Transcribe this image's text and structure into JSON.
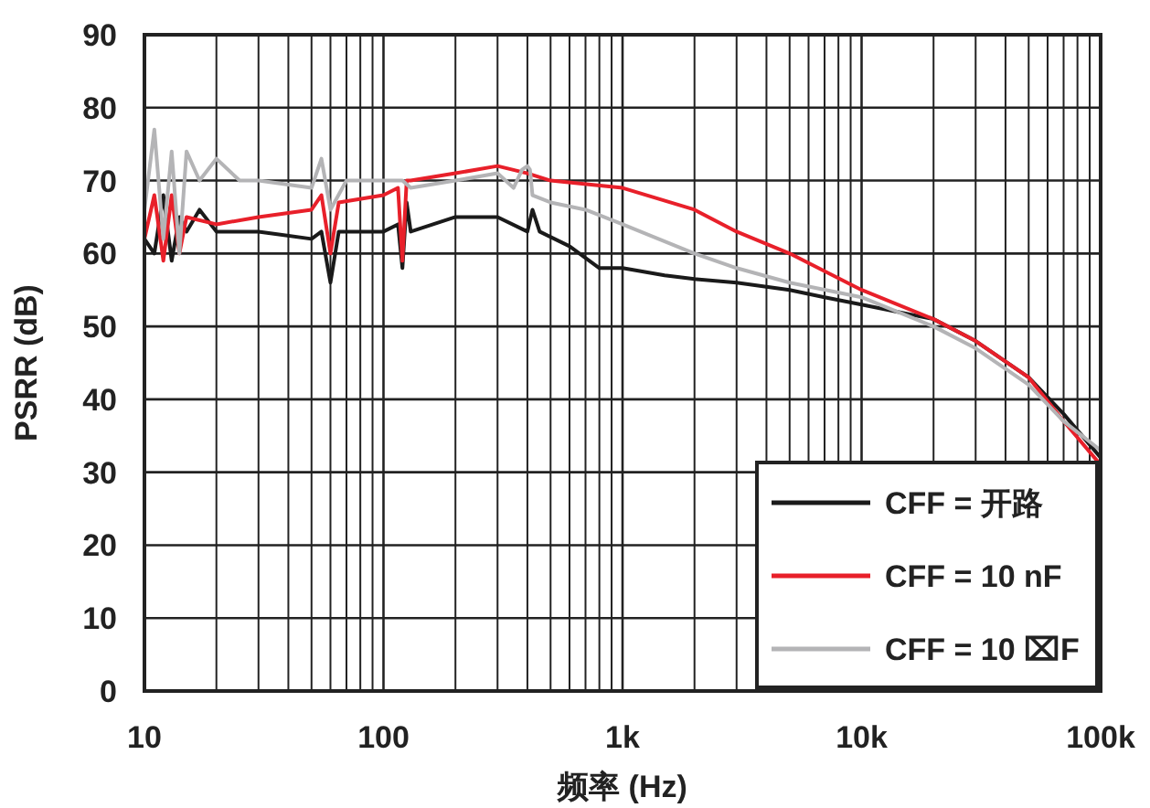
{
  "chart_data": {
    "type": "line",
    "xlabel": "频率 (Hz)",
    "ylabel": "PSRR (dB)",
    "log": "x",
    "grid": true,
    "legend": "bottom right",
    "line_style": "solid",
    "xlim": [
      10,
      100000
    ],
    "ylim": [
      0,
      90
    ],
    "xticks": [
      {
        "value": 10,
        "label": "10"
      },
      {
        "value": 20,
        "label": null
      },
      {
        "value": 30,
        "label": null
      },
      {
        "value": 40,
        "label": null
      },
      {
        "value": 50,
        "label": null
      },
      {
        "value": 60,
        "label": null
      },
      {
        "value": 70,
        "label": null
      },
      {
        "value": 80,
        "label": null
      },
      {
        "value": 90,
        "label": null
      },
      {
        "value": 100,
        "label": "100"
      },
      {
        "value": 200,
        "label": null
      },
      {
        "value": 300,
        "label": null
      },
      {
        "value": 400,
        "label": null
      },
      {
        "value": 500,
        "label": null
      },
      {
        "value": 600,
        "label": null
      },
      {
        "value": 700,
        "label": null
      },
      {
        "value": 800,
        "label": null
      },
      {
        "value": 900,
        "label": null
      },
      {
        "value": 1000,
        "label": "1k"
      },
      {
        "value": 2000,
        "label": null
      },
      {
        "value": 3000,
        "label": null
      },
      {
        "value": 4000,
        "label": null
      },
      {
        "value": 5000,
        "label": null
      },
      {
        "value": 6000,
        "label": null
      },
      {
        "value": 7000,
        "label": null
      },
      {
        "value": 8000,
        "label": null
      },
      {
        "value": 9000,
        "label": null
      },
      {
        "value": 10000,
        "label": "10k"
      },
      {
        "value": 20000,
        "label": null
      },
      {
        "value": 30000,
        "label": null
      },
      {
        "value": 40000,
        "label": null
      },
      {
        "value": 50000,
        "label": null
      },
      {
        "value": 60000,
        "label": null
      },
      {
        "value": 70000,
        "label": null
      },
      {
        "value": 80000,
        "label": null
      },
      {
        "value": 90000,
        "label": null
      },
      {
        "value": 100000,
        "label": "100k"
      }
    ],
    "yticks": [
      0,
      10,
      20,
      30,
      40,
      50,
      60,
      70,
      80,
      90
    ],
    "series": [
      {
        "name": "CFF = 开路",
        "color": "#1a1a1a",
        "x": [
          10,
          11,
          12,
          13,
          14,
          15,
          17,
          20,
          30,
          50,
          55,
          60,
          65,
          100,
          115,
          120,
          125,
          130,
          200,
          300,
          400,
          420,
          450,
          600,
          800,
          1000,
          1500,
          2000,
          3000,
          5000,
          7000,
          10000,
          20000,
          30000,
          50000,
          70000,
          100000
        ],
        "values": [
          62,
          60,
          68,
          59,
          65,
          63,
          66,
          63,
          63,
          62,
          63,
          56,
          63,
          63,
          64,
          58,
          67,
          63,
          65,
          65,
          63,
          66,
          63,
          61,
          58,
          58,
          57,
          56.5,
          56,
          55,
          54,
          53,
          51,
          48,
          43,
          38,
          32
        ]
      },
      {
        "name": "CFF = 10 nF",
        "color": "#e8202a",
        "x": [
          10,
          11,
          12,
          13,
          14,
          15,
          20,
          30,
          50,
          55,
          60,
          65,
          100,
          115,
          120,
          125,
          130,
          200,
          300,
          400,
          500,
          1000,
          2000,
          3000,
          5000,
          10000,
          20000,
          30000,
          50000,
          70000,
          100000
        ],
        "values": [
          62,
          68,
          59,
          68,
          60,
          65,
          64,
          65,
          66,
          68,
          60,
          67,
          68,
          69,
          59,
          70,
          70,
          71,
          72,
          71,
          70,
          69,
          66,
          63,
          60,
          55,
          51,
          48,
          43,
          37,
          31
        ]
      },
      {
        "name": "CFF = 10 ⌧F",
        "color": "#b4b4b6",
        "x": [
          10,
          11,
          12,
          13,
          14,
          15,
          17,
          20,
          25,
          30,
          50,
          55,
          60,
          70,
          100,
          120,
          130,
          200,
          300,
          350,
          380,
          400,
          410,
          420,
          500,
          700,
          1000,
          2000,
          3000,
          5000,
          10000,
          20000,
          30000,
          50000,
          70000,
          100000
        ],
        "values": [
          66,
          77,
          62,
          74,
          60,
          74,
          70,
          73,
          70,
          70,
          69,
          73,
          66,
          70,
          70,
          70,
          69,
          70,
          71,
          69,
          71.5,
          72,
          71.5,
          68,
          67,
          66,
          64,
          60,
          58,
          56,
          54,
          50,
          47,
          42,
          37,
          33
        ]
      }
    ]
  }
}
